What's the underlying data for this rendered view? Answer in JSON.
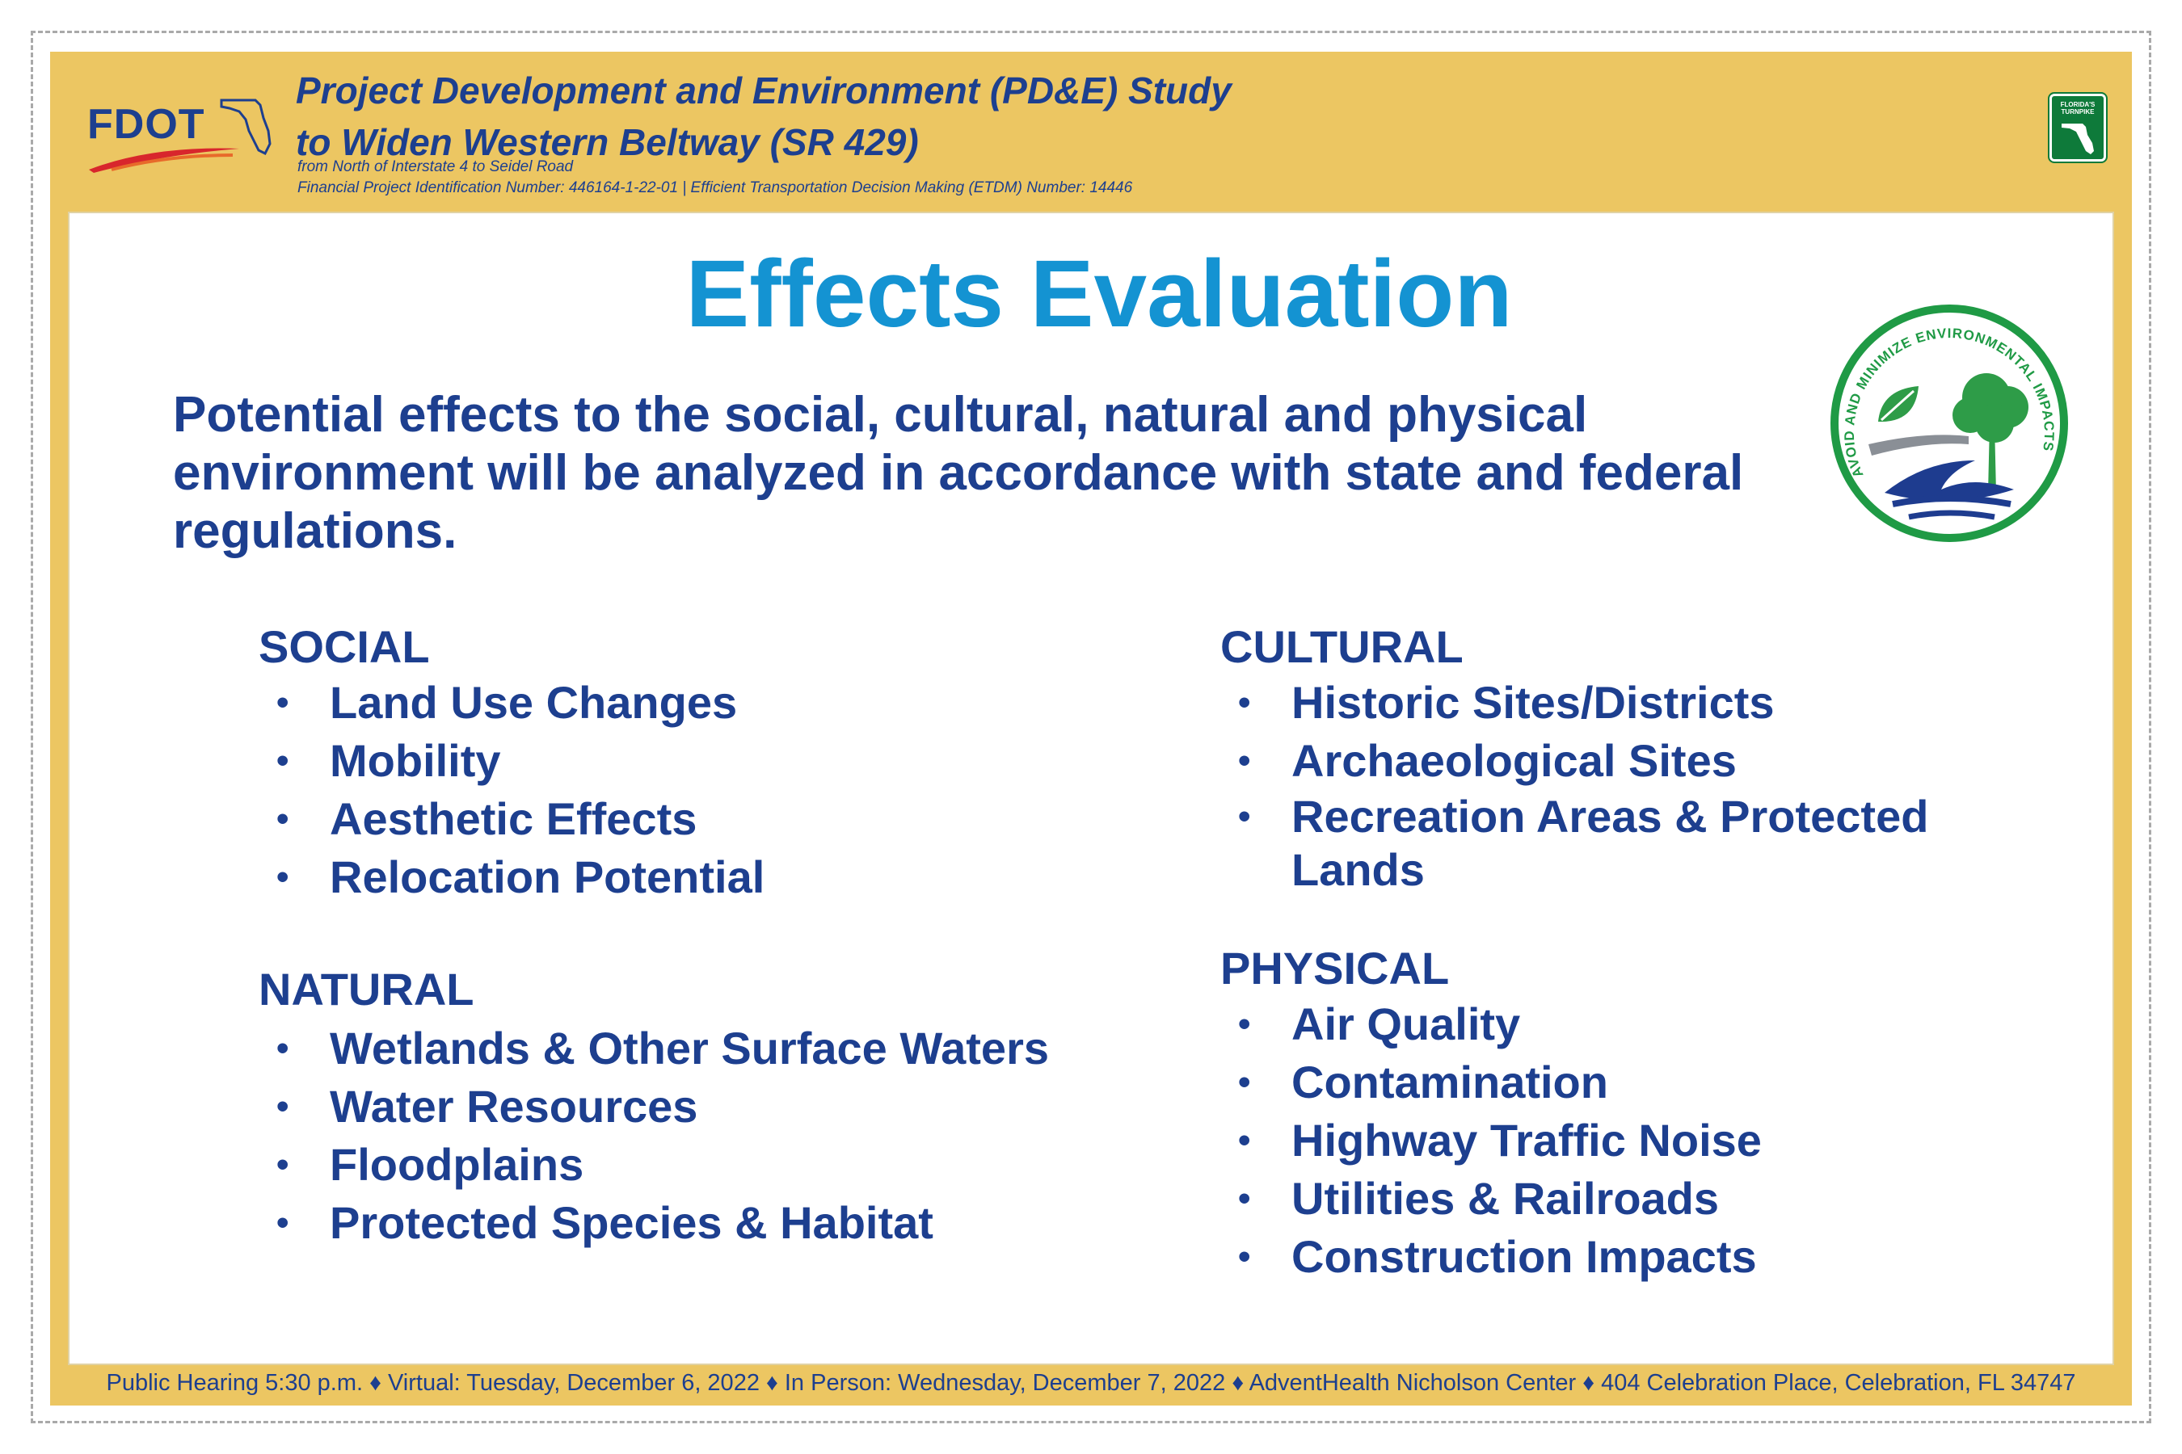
{
  "header": {
    "logo_text": "FDOT",
    "title_line1": "Project Development and Environment (PD&E) Study",
    "title_line2": "to Widen Western Beltway (SR 429)",
    "subtitle_line1": "from North of Interstate 4 to Seidel Road",
    "subtitle_line2": "Financial Project Identification Number: 446164-1-22-01 |  Efficient Transportation Decision Making (ETDM) Number: 14446",
    "turnpike_label": "FLORIDA'S TURNPIKE"
  },
  "main": {
    "title": "Effects Evaluation",
    "intro": "Potential effects to the social, cultural, natural and physical environment will be analyzed in accordance with state and federal regulations.",
    "seal_text": "AVOID AND MINIMIZE ENVIRONMENTAL IMPACTS"
  },
  "categories": {
    "social": {
      "heading": "SOCIAL",
      "items": [
        "Land Use Changes",
        "Mobility",
        "Aesthetic Effects",
        "Relocation Potential"
      ]
    },
    "natural": {
      "heading": "NATURAL",
      "items": [
        "Wetlands & Other Surface Waters",
        "Water Resources",
        "Floodplains",
        "Protected Species & Habitat"
      ]
    },
    "cultural": {
      "heading": "CULTURAL",
      "items": [
        "Historic Sites/Districts",
        "Archaeological Sites",
        "Recreation Areas & Protected Lands"
      ]
    },
    "physical": {
      "heading": "PHYSICAL",
      "items": [
        "Air Quality",
        "Contamination",
        "Highway Traffic Noise",
        "Utilities & Railroads",
        "Construction Impacts"
      ]
    }
  },
  "footer": {
    "text": "Public Hearing 5:30 p.m. ♦ Virtual: Tuesday, December 6, 2022 ♦ In Person: Wednesday, December 7, 2022 ♦  AdventHealth Nicholson Center ♦ 404 Celebration Place, Celebration, FL 34747"
  },
  "colors": {
    "board_yellow": "#ecc662",
    "navy": "#1d3f8f",
    "title_blue": "#1493d2",
    "seal_green": "#1f9a45",
    "turnpike_green": "#0e7a3a"
  }
}
